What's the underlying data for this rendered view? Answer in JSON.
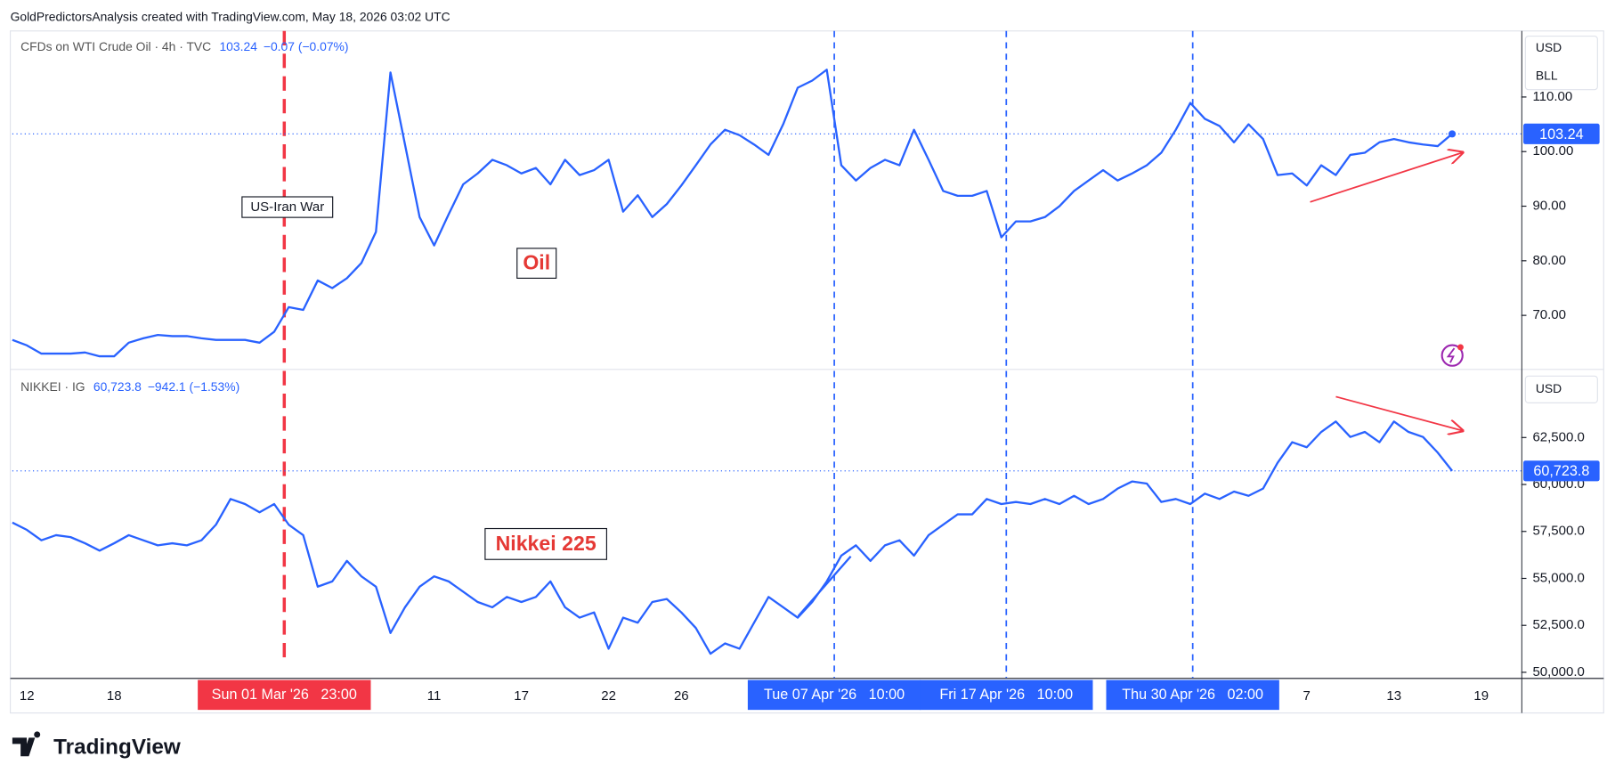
{
  "header": {
    "attribution": "GoldPredictorsAnalysis created with TradingView.com, May 18, 2026 03:02 UTC"
  },
  "footer": {
    "logo": "TradingView"
  },
  "chart_data": [
    {
      "type": "line",
      "title": "CFDs on WTI Crude Oil · 4h · TVC",
      "last_price": 103.24,
      "change": "−0.07 (−0.07%)",
      "currency": "USD",
      "unit": "BLL",
      "color": "#2962ff",
      "grid": false,
      "annotations": [
        "US-Iran War",
        "Oil"
      ],
      "ylim": [
        60.2,
        122.1
      ],
      "yticks": [
        {
          "value": 70,
          "label": "70.00"
        },
        {
          "value": 80,
          "label": "80.00"
        },
        {
          "value": 90,
          "label": "90.00"
        },
        {
          "value": 100,
          "label": "100.00"
        },
        {
          "value": 110,
          "label": "110.00"
        }
      ],
      "values": [
        65.5,
        64.5,
        63,
        63,
        63,
        63.2,
        62.5,
        62.5,
        65,
        65.8,
        66.4,
        66.2,
        66.2,
        65.8,
        65.5,
        65.5,
        65.5,
        65,
        67,
        71.5,
        71,
        76.4,
        75,
        76.8,
        79.6,
        85.3,
        114.5,
        101.3,
        88,
        82.8,
        88.5,
        94,
        96,
        98.5,
        97.5,
        96,
        97,
        94,
        98.5,
        95.7,
        96.6,
        98.5,
        89,
        92,
        88,
        90.4,
        93.8,
        97.5,
        101.3,
        104,
        103,
        101.3,
        99.4,
        105,
        111.7,
        113,
        115,
        97.5,
        94.7,
        97,
        98.5,
        97.5,
        104,
        98.5,
        92.8,
        91.9,
        91.9,
        92.8,
        84.3,
        87.2,
        87.2,
        88,
        90,
        92.8,
        94.7,
        96.6,
        94.7,
        96,
        97.5,
        99.8,
        104,
        108.9,
        106,
        104.7,
        101.7,
        105,
        102.3,
        95.7,
        96,
        93.8,
        97.5,
        95.7,
        99.4,
        99.8,
        101.7,
        102.3,
        101.7,
        101.3,
        101,
        103.24,
        null,
        null
      ]
    },
    {
      "type": "line",
      "title": "NIKKEI · IG",
      "last_price": {
        "value": 60723.8,
        "label": "60,723.8"
      },
      "change": "−942.1 (−1.53%)",
      "currency": "USD",
      "color": "#2962ff",
      "grid": false,
      "annotations": [
        "Nikkei 225"
      ],
      "markers": [
        "Sun 01 Mar '26   23:00",
        "Tue 07 Apr '26   10:00",
        "Fri 17 Apr '26   10:00",
        "Thu 30 Apr '26   02:00"
      ],
      "ylim": [
        49700,
        66100
      ],
      "yticks": [
        {
          "value": 50000,
          "label": "50,000.0"
        },
        {
          "value": 52500,
          "label": "52,500.0"
        },
        {
          "value": 55000,
          "label": "55,000.0"
        },
        {
          "value": 57500,
          "label": "57,500.0"
        },
        {
          "value": 60000,
          "label": "60,000.0"
        },
        {
          "value": 62500,
          "label": "62,500.0"
        }
      ],
      "categories": [
        null,
        "12",
        null,
        null,
        null,
        null,
        null,
        "18",
        null,
        null,
        null,
        null,
        null,
        null,
        null,
        null,
        null,
        null,
        null,
        null,
        null,
        null,
        null,
        null,
        null,
        null,
        null,
        null,
        null,
        "11",
        null,
        null,
        null,
        null,
        null,
        "17",
        null,
        null,
        null,
        null,
        null,
        "22",
        null,
        null,
        null,
        null,
        "26",
        null,
        null,
        null,
        null,
        null,
        null,
        null,
        null,
        null,
        null,
        null,
        null,
        null,
        null,
        null,
        null,
        null,
        null,
        null,
        null,
        null,
        null,
        null,
        null,
        null,
        null,
        null,
        null,
        null,
        null,
        null,
        null,
        null,
        null,
        null,
        null,
        null,
        null,
        null,
        null,
        null,
        null,
        "7",
        null,
        null,
        null,
        null,
        null,
        "13",
        null,
        null,
        null,
        null,
        null,
        "19"
      ],
      "values": [
        57970,
        57580,
        57030,
        57300,
        57200,
        56870,
        56480,
        56870,
        57300,
        57030,
        56760,
        56870,
        56760,
        57030,
        57860,
        59230,
        58960,
        58520,
        58960,
        57860,
        57300,
        54560,
        54840,
        55930,
        55110,
        54560,
        52090,
        53460,
        54560,
        55110,
        54840,
        54290,
        53740,
        53460,
        54010,
        53740,
        54010,
        54840,
        53460,
        52910,
        53190,
        51260,
        52910,
        52640,
        53740,
        53900,
        53190,
        52360,
        50990,
        51540,
        51260,
        52640,
        54010,
        53460,
        52910,
        53740,
        54840,
        56210,
        56760,
        55930,
        56760,
        57030,
        56210,
        57300,
        57860,
        58410,
        58410,
        59230,
        58960,
        59070,
        58960,
        59230,
        58960,
        59400,
        58960,
        59230,
        59780,
        60160,
        60050,
        59070,
        59230,
        58960,
        59510,
        59230,
        59620,
        59400,
        59780,
        61150,
        62250,
        61980,
        62800,
        63350,
        62530,
        62800,
        62250,
        63350,
        62800,
        62530,
        61700,
        60723.8,
        null,
        null
      ]
    }
  ]
}
